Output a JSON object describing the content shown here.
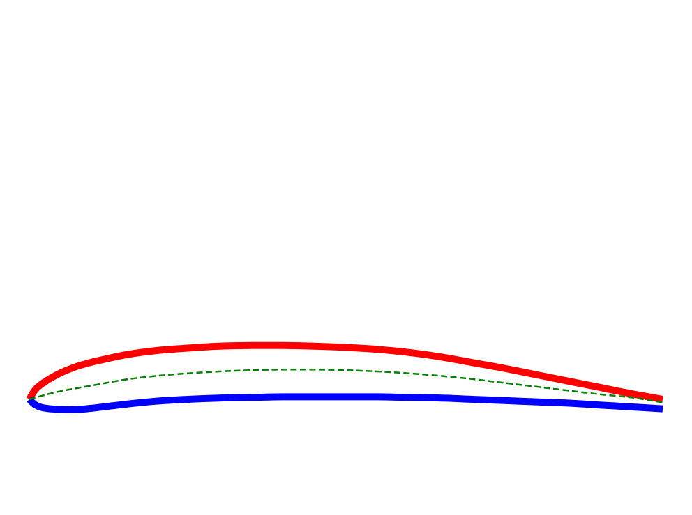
{
  "diagram": {
    "colors": {
      "background": "#ffffff",
      "upper_surface": "#ff0000",
      "lower_surface": "#0000ff",
      "camber_line": "#008000"
    },
    "airfoil_data": {
      "upper": [
        [
          0,
          0
        ],
        [
          0.01,
          0.016
        ],
        [
          0.025,
          0.028
        ],
        [
          0.05,
          0.042
        ],
        [
          0.075,
          0.052
        ],
        [
          0.1,
          0.059
        ],
        [
          0.15,
          0.07
        ],
        [
          0.2,
          0.077
        ],
        [
          0.25,
          0.081
        ],
        [
          0.3,
          0.084
        ],
        [
          0.35,
          0.085
        ],
        [
          0.4,
          0.085
        ],
        [
          0.45,
          0.084
        ],
        [
          0.5,
          0.082
        ],
        [
          0.55,
          0.079
        ],
        [
          0.6,
          0.074
        ],
        [
          0.65,
          0.067
        ],
        [
          0.7,
          0.058
        ],
        [
          0.75,
          0.049
        ],
        [
          0.8,
          0.039
        ],
        [
          0.85,
          0.029
        ],
        [
          0.9,
          0.019
        ],
        [
          0.95,
          0.009
        ],
        [
          1.0,
          0.0
        ]
      ],
      "lower": [
        [
          0,
          0
        ],
        [
          0.01,
          -0.009
        ],
        [
          0.025,
          -0.014
        ],
        [
          0.05,
          -0.016
        ],
        [
          0.075,
          -0.016
        ],
        [
          0.1,
          -0.014
        ],
        [
          0.15,
          -0.008
        ],
        [
          0.2,
          -0.003
        ],
        [
          0.25,
          0.0
        ],
        [
          0.3,
          0.002
        ],
        [
          0.35,
          0.003
        ],
        [
          0.4,
          0.004
        ],
        [
          0.45,
          0.004
        ],
        [
          0.5,
          0.004
        ],
        [
          0.55,
          0.004
        ],
        [
          0.6,
          0.003
        ],
        [
          0.65,
          0.002
        ],
        [
          0.7,
          0.0
        ],
        [
          0.75,
          -0.002
        ],
        [
          0.8,
          -0.004
        ],
        [
          0.85,
          -0.006
        ],
        [
          0.9,
          -0.009
        ],
        [
          0.95,
          -0.012
        ],
        [
          1.0,
          -0.015
        ]
      ],
      "camber": [
        [
          0,
          0
        ],
        [
          0.025,
          0.007
        ],
        [
          0.05,
          0.013
        ],
        [
          0.1,
          0.022
        ],
        [
          0.15,
          0.031
        ],
        [
          0.2,
          0.037
        ],
        [
          0.25,
          0.041
        ],
        [
          0.3,
          0.044
        ],
        [
          0.35,
          0.046
        ],
        [
          0.4,
          0.047
        ],
        [
          0.45,
          0.047
        ],
        [
          0.5,
          0.046
        ],
        [
          0.55,
          0.044
        ],
        [
          0.6,
          0.041
        ],
        [
          0.65,
          0.037
        ],
        [
          0.7,
          0.032
        ],
        [
          0.75,
          0.026
        ],
        [
          0.8,
          0.02
        ],
        [
          0.85,
          0.014
        ],
        [
          0.9,
          0.008
        ],
        [
          0.95,
          0.003
        ],
        [
          1.0,
          -0.005
        ]
      ]
    }
  }
}
